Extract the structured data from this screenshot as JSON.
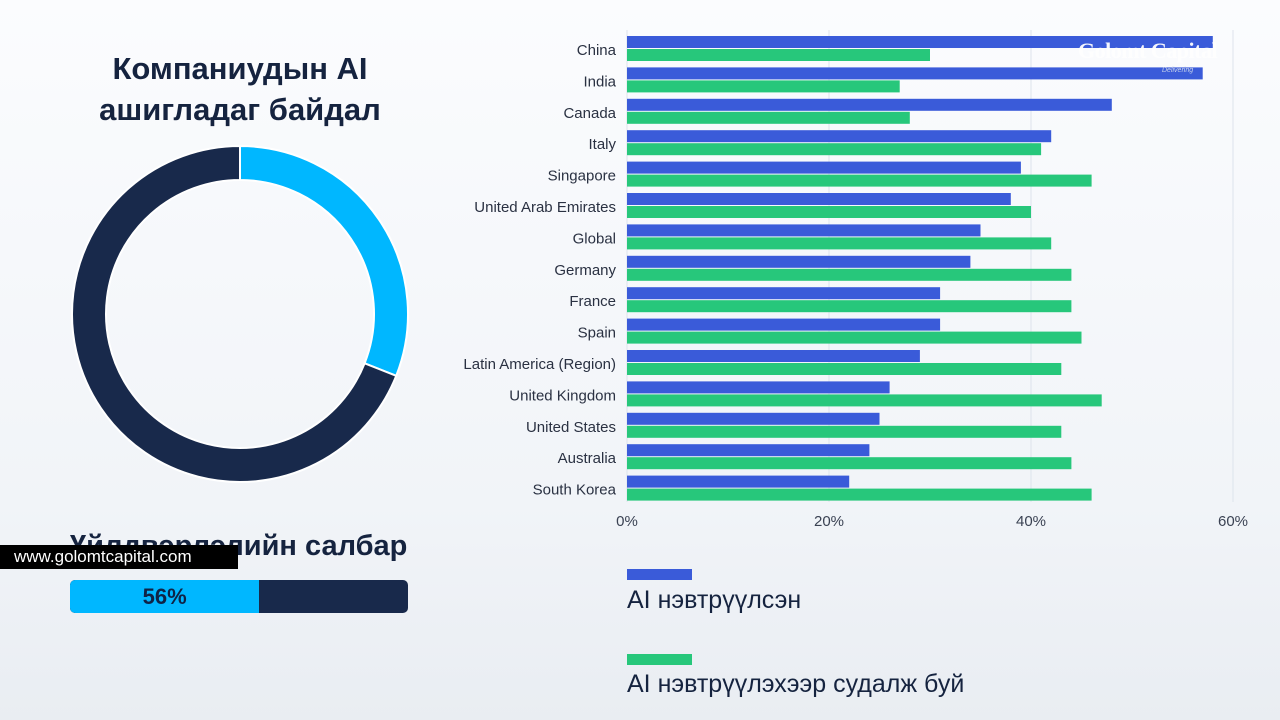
{
  "left_panel": {
    "title_line1": "Компаниудын AI",
    "title_line2": "ашигладаг байдал",
    "sector_title": "Үйлдвэрлэлийн салбар",
    "progress_label": "56%",
    "progress_value": 0.56,
    "website": "www.golomtcapital.com"
  },
  "logo": {
    "name": "Golomt Capital",
    "tagline": "Delivering"
  },
  "colors": {
    "adopted": "#3a5bd9",
    "exploring": "#27c77b",
    "donut_light": "#00b7ff",
    "donut_dark": "#18294b"
  },
  "legend": {
    "adopted": "AI нэвтрүүлсэн",
    "exploring": "AI нэвтрүүлэхээр судалж буй"
  },
  "chart_data": [
    {
      "type": "pie",
      "variant": "donut",
      "title": "Компаниудын AI ашигладаг байдал",
      "slices": [
        {
          "label": "",
          "value": 31
        },
        {
          "label": "",
          "value": 69
        }
      ]
    },
    {
      "type": "bar",
      "orientation": "horizontal",
      "categories": [
        "China",
        "India",
        "Canada",
        "Italy",
        "Singapore",
        "United Arab Emirates",
        "Global",
        "Germany",
        "France",
        "Spain",
        "Latin America (Region)",
        "United Kingdom",
        "United States",
        "Australia",
        "South Korea"
      ],
      "series": [
        {
          "name": "AI нэвтрүүлсэн",
          "values": [
            58,
            57,
            48,
            42,
            39,
            38,
            35,
            34,
            31,
            31,
            29,
            26,
            25,
            24,
            22
          ]
        },
        {
          "name": "AI нэвтрүүлэхээр судалж буй",
          "values": [
            30,
            27,
            28,
            41,
            46,
            40,
            42,
            44,
            44,
            45,
            43,
            47,
            43,
            44,
            46
          ]
        }
      ],
      "xlim": [
        0,
        60
      ],
      "xticks": [
        "0%",
        "20%",
        "40%",
        "60%"
      ],
      "grid": true,
      "legend_position": "bottom"
    }
  ]
}
